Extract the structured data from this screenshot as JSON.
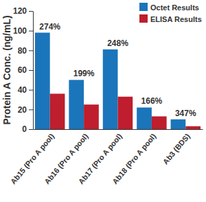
{
  "chart_data": {
    "type": "bar",
    "y_label": "Protein A Conc. (ng/mL)",
    "categories": [
      "Ab15 (Pro A pool)",
      "Ab16 (Pro A pool)",
      "Ab17 (Pro A pool)",
      "Ab18 (Pro A pool)",
      "Ab3 (BDS)"
    ],
    "series": [
      {
        "name": "Octet Results",
        "color": "#1b75bb",
        "values": [
          98,
          50,
          81,
          22,
          10
        ]
      },
      {
        "name": "ELISA Results",
        "color": "#be1e2d",
        "values": [
          36,
          25,
          33,
          13,
          3
        ]
      }
    ],
    "annotations": [
      "274%",
      "199%",
      "248%",
      "166%",
      "347%"
    ],
    "ylim": [
      0,
      120
    ],
    "yticks": [
      0,
      20,
      40,
      60,
      80,
      100,
      120
    ],
    "grid": false,
    "legend": "upper right"
  }
}
